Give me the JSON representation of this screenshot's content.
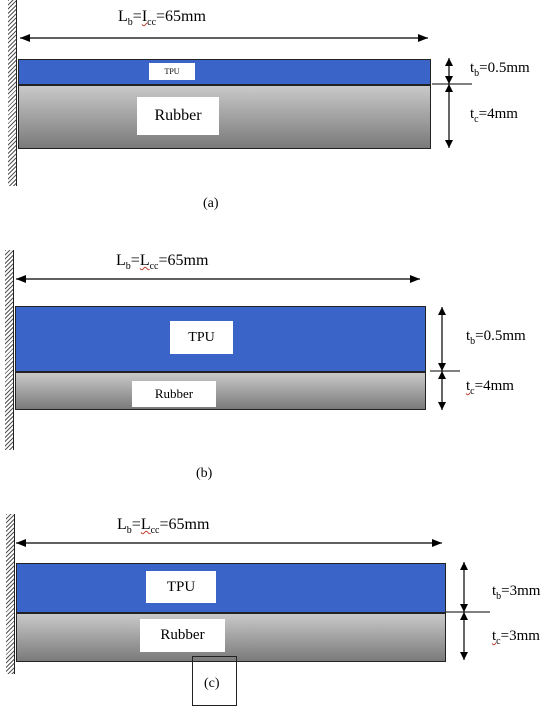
{
  "panels": [
    {
      "length_label": {
        "L": "L",
        "b": "b",
        "mid": "=",
        "I": "I",
        "cc": "cc",
        "value": "=65mm"
      },
      "tpu_label": "TPU",
      "rubber_label": "Rubber",
      "tb_label": {
        "t": "t",
        "sub": "b",
        "value": "=0.5mm"
      },
      "tc_label": {
        "t": "t",
        "sub": "c",
        "value": "=4mm"
      },
      "caption": "(a)"
    },
    {
      "length_label": {
        "L": "L",
        "b": "b",
        "mid": "=",
        "I": "L",
        "cc": "cc",
        "value": "=65mm"
      },
      "tpu_label": "TPU",
      "rubber_label": "Rubber",
      "tb_label": {
        "t": "t",
        "sub": "b",
        "value": "=0.5mm"
      },
      "tc_label": {
        "t": "t",
        "sub": "c",
        "value": "=4mm"
      },
      "caption": "(b)"
    },
    {
      "length_label": {
        "L": "L",
        "b": "b",
        "mid": "=",
        "I": "L",
        "cc": "cc",
        "value": "=65mm"
      },
      "tpu_label": "TPU",
      "rubber_label": "Rubber",
      "tb_label": {
        "t": "t",
        "sub": "b",
        "value": "=3mm"
      },
      "tc_label": {
        "t": "t",
        "sub": "c",
        "value": "=3mm"
      },
      "caption": "(c)"
    }
  ],
  "colors": {
    "tpu": "#3a64c8",
    "rubber_top": "#c9c9c9",
    "rubber_bottom": "#7a7a7a"
  }
}
